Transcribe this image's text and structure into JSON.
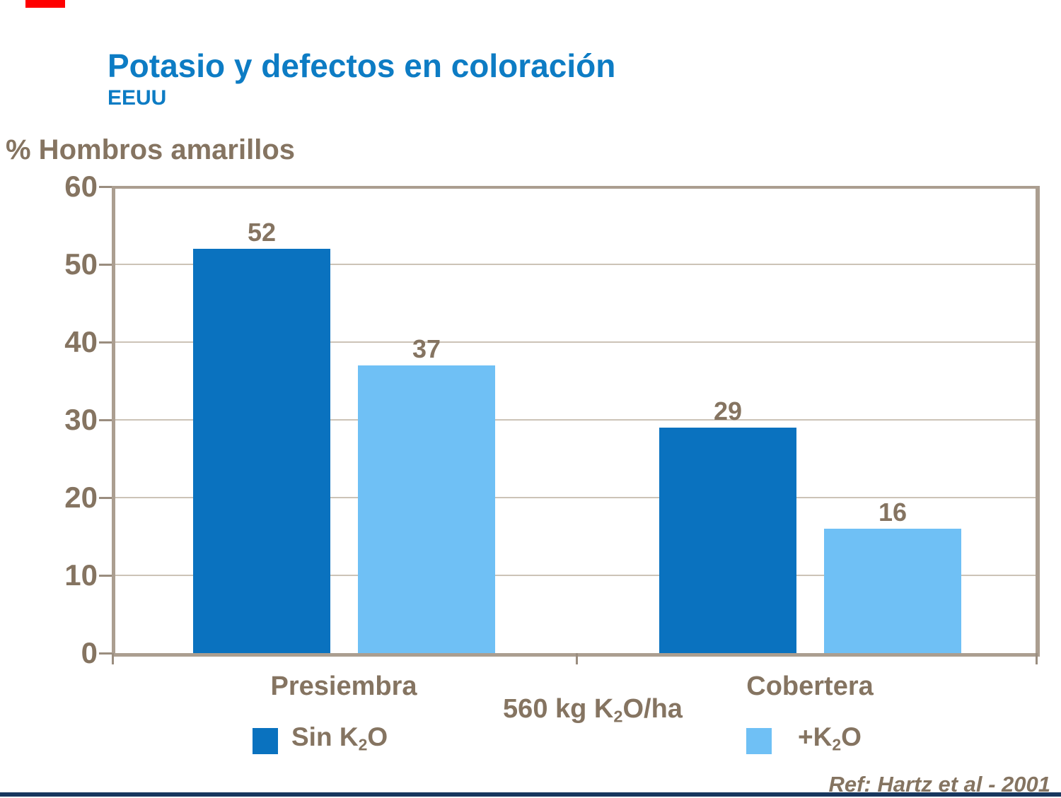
{
  "slide": {
    "title": "Potasio y defectos en coloración",
    "subtitle": "EEUU",
    "axis_title": "% Hombros amarillos",
    "reference": "Ref: Hartz et al - 2001"
  },
  "accents": {
    "red_bar_color": "#ff0000",
    "footer_bar_color": "#17375e",
    "frame_color": "#ab9e90",
    "text_brown": "#857461",
    "title_blue": "#0d7cc4"
  },
  "chart_data": {
    "type": "bar",
    "title": "Potasio y defectos en coloración",
    "categories": [
      "Presiembra",
      "Cobertera"
    ],
    "series": [
      {
        "name": "Sin K2O",
        "color": "#0a72bf",
        "values": [
          52,
          29
        ]
      },
      {
        "name": "+K2O",
        "color": "#6fc0f5",
        "values": [
          37,
          16
        ]
      }
    ],
    "ylabel": "% Hombros amarillos",
    "ylim": [
      0,
      60
    ],
    "yticks": [
      0,
      10,
      20,
      30,
      40,
      50,
      60
    ],
    "grid": true,
    "legend_position": "bottom",
    "annotation": "560 kg K2O/ha"
  },
  "annotation_parts": {
    "prefix": "560 kg K",
    "sub": "2",
    "suffix": "O/ha"
  },
  "legend": {
    "items": [
      {
        "prefix": "Sin K",
        "sub": "2",
        "suffix": "O",
        "color": "#0a72bf"
      },
      {
        "prefix": "+K",
        "sub": "2",
        "suffix": "O",
        "color": "#6fc0f5"
      }
    ]
  }
}
